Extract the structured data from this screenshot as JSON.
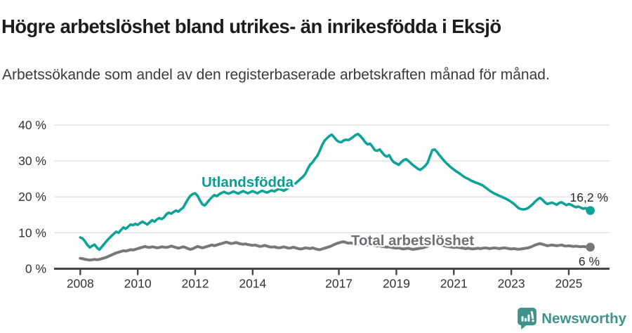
{
  "header": {
    "title": "Högre arbetslöshet bland utrikes- än inrikesfödda i Eksjö",
    "subtitle": "Arbetssökande som andel av den registerbaserade arbetskraften månad för månad."
  },
  "chart_data": {
    "type": "line",
    "title": "Högre arbetslöshet bland utrikes- än inrikesfödda i Eksjö",
    "subtitle": "Arbetssökande som andel av den registerbaserade arbetskraften månad för månad.",
    "x_unit": "month",
    "start": "2008-01",
    "end": "2025-10",
    "xlabel": "",
    "ylabel": "",
    "ylim": [
      0,
      40
    ],
    "grid": "horizontal",
    "gridline_color": "#dfdfdf",
    "axis_color": "#454545",
    "tick_label_color": "#333333",
    "y_ticks": [
      "0 %",
      "10 %",
      "20 %",
      "30 %",
      "40 %"
    ],
    "y_tick_values": [
      0,
      10,
      20,
      30,
      40
    ],
    "x_tick_years": [
      2008,
      2010,
      2012,
      2014,
      2017,
      2019,
      2021,
      2023,
      2025
    ],
    "legend_position": "inline-labels",
    "series": [
      {
        "name": "Utlandsfödda",
        "color": "#0ea298",
        "label_color": "#0d9b92",
        "end_label": "16,2 %",
        "end_value": 16.2,
        "values": [
          8.7,
          8.4,
          7.6,
          6.6,
          5.9,
          6.4,
          6.7,
          5.8,
          5.3,
          6.1,
          6.9,
          7.7,
          8.4,
          9.1,
          9.7,
          10.3,
          10.0,
          10.8,
          11.5,
          11.1,
          11.7,
          12.3,
          12.1,
          12.5,
          12.2,
          12.7,
          13.1,
          12.7,
          12.3,
          12.9,
          13.5,
          13.1,
          13.7,
          14.1,
          13.8,
          14.3,
          15.2,
          15.6,
          15.3,
          15.8,
          16.2,
          15.9,
          16.5,
          17.0,
          18.2,
          19.4,
          20.3,
          20.8,
          21.0,
          20.3,
          19.0,
          17.9,
          17.6,
          18.4,
          19.2,
          19.9,
          20.5,
          20.2,
          20.7,
          21.1,
          21.4,
          21.1,
          20.9,
          21.2,
          21.5,
          21.2,
          20.9,
          21.3,
          21.6,
          21.3,
          21.0,
          21.3,
          21.6,
          21.3,
          21.0,
          21.4,
          21.7,
          21.4,
          21.2,
          21.5,
          21.8,
          21.5,
          21.9,
          22.2,
          22.0,
          21.7,
          22.1,
          22.5,
          22.9,
          23.3,
          23.8,
          24.4,
          25.0,
          25.6,
          26.4,
          27.8,
          29.0,
          29.6,
          30.6,
          31.4,
          32.8,
          34.4,
          35.6,
          36.3,
          36.9,
          37.3,
          36.6,
          35.8,
          35.3,
          35.2,
          35.7,
          35.9,
          35.8,
          36.2,
          36.7,
          37.2,
          37.5,
          36.9,
          36.1,
          35.2,
          34.6,
          34.8,
          34.0,
          33.0,
          32.8,
          33.2,
          32.4,
          31.6,
          31.2,
          31.6,
          30.4,
          29.6,
          29.3,
          28.9,
          29.6,
          30.2,
          30.5,
          30.0,
          29.4,
          28.8,
          28.3,
          27.8,
          27.5,
          28.0,
          28.6,
          29.4,
          31.2,
          33.0,
          33.2,
          32.5,
          31.6,
          30.8,
          30.0,
          29.3,
          28.7,
          28.1,
          27.6,
          27.1,
          26.7,
          26.2,
          25.7,
          25.3,
          25.0,
          24.6,
          24.3,
          24.0,
          23.8,
          23.5,
          23.2,
          22.7,
          22.2,
          21.7,
          21.3,
          20.9,
          20.6,
          20.3,
          20.0,
          19.7,
          19.4,
          19.0,
          18.6,
          18.1,
          17.5,
          16.9,
          16.6,
          16.5,
          16.6,
          16.9,
          17.4,
          18.0,
          18.7,
          19.3,
          19.7,
          19.2,
          18.5,
          18.0,
          18.2,
          18.4,
          18.1,
          17.8,
          18.3,
          18.5,
          18.1,
          17.7,
          18.0,
          17.8,
          17.4,
          17.1,
          17.3,
          17.0,
          16.7,
          16.9,
          16.5,
          16.2
        ]
      },
      {
        "name": "Total arbetslöshet",
        "color": "#77787b",
        "label_color": "#6e7175",
        "end_label": "6 %",
        "end_value": 6.0,
        "values": [
          2.9,
          2.8,
          2.6,
          2.5,
          2.4,
          2.5,
          2.6,
          2.5,
          2.6,
          2.8,
          3.0,
          3.2,
          3.5,
          3.8,
          4.1,
          4.4,
          4.6,
          4.8,
          5.0,
          4.9,
          5.1,
          5.3,
          5.2,
          5.4,
          5.6,
          5.8,
          6.0,
          6.2,
          6.0,
          5.9,
          6.1,
          6.0,
          5.8,
          5.9,
          6.1,
          6.0,
          5.9,
          6.1,
          6.3,
          6.1,
          5.9,
          5.7,
          5.9,
          6.1,
          5.9,
          5.6,
          5.4,
          5.6,
          5.9,
          6.2,
          6.0,
          5.8,
          6.0,
          6.2,
          6.4,
          6.6,
          6.4,
          6.6,
          6.8,
          7.0,
          7.2,
          7.4,
          7.2,
          7.0,
          7.1,
          7.3,
          7.1,
          6.9,
          6.8,
          6.9,
          6.7,
          6.6,
          6.5,
          6.6,
          6.4,
          6.2,
          6.3,
          6.5,
          6.3,
          6.1,
          6.0,
          6.1,
          5.9,
          5.8,
          5.9,
          6.1,
          5.9,
          5.7,
          5.8,
          6.0,
          5.8,
          5.6,
          5.5,
          5.6,
          5.8,
          5.7,
          5.6,
          5.8,
          5.6,
          5.4,
          5.3,
          5.5,
          5.7,
          5.9,
          6.1,
          6.4,
          6.7,
          7.0,
          7.2,
          7.4,
          7.5,
          7.3,
          7.1,
          7.2,
          7.0,
          6.9,
          7.0,
          6.8,
          6.7,
          6.8,
          6.6,
          6.5,
          6.6,
          6.4,
          6.3,
          6.4,
          6.2,
          6.1,
          6.0,
          6.1,
          5.9,
          5.8,
          5.7,
          5.8,
          5.6,
          5.5,
          5.6,
          5.7,
          5.5,
          5.4,
          5.5,
          5.6,
          5.7,
          5.8,
          6.0,
          6.2,
          6.6,
          7.0,
          7.1,
          6.9,
          6.7,
          6.5,
          6.4,
          6.2,
          6.1,
          6.0,
          5.9,
          6.0,
          5.9,
          5.8,
          5.7,
          5.6,
          5.7,
          5.6,
          5.5,
          5.6,
          5.7,
          5.6,
          5.7,
          5.8,
          5.7,
          5.6,
          5.7,
          5.8,
          5.7,
          5.6,
          5.7,
          5.8,
          5.7,
          5.6,
          5.5,
          5.6,
          5.5,
          5.4,
          5.5,
          5.6,
          5.7,
          5.8,
          6.0,
          6.3,
          6.6,
          6.8,
          7.0,
          6.8,
          6.6,
          6.4,
          6.5,
          6.6,
          6.5,
          6.4,
          6.5,
          6.6,
          6.4,
          6.3,
          6.4,
          6.3,
          6.2,
          6.3,
          6.2,
          6.1,
          6.2,
          6.1,
          6.0,
          6.0
        ]
      }
    ]
  },
  "branding": {
    "name": "Newsworthy",
    "color": "#3f938c",
    "icon": "newsworthy-bar-chart-speech-bubble-icon"
  }
}
